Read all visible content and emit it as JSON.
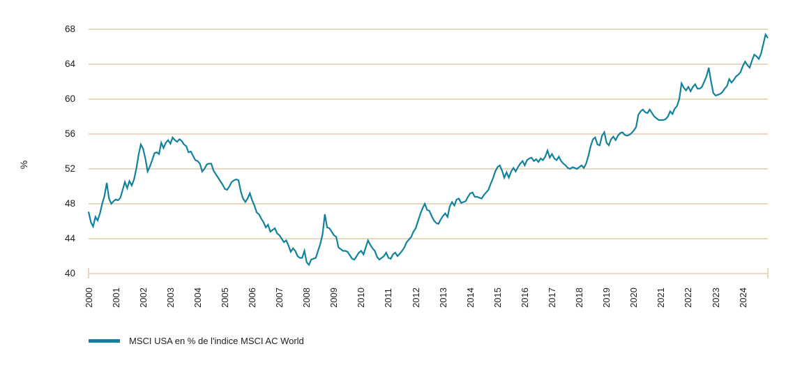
{
  "chart_data": {
    "type": "line",
    "title": "",
    "ylabel": "%",
    "ylim": [
      40,
      68
    ],
    "yticks": [
      40,
      44,
      48,
      52,
      56,
      60,
      64,
      68
    ],
    "xticks": [
      2000,
      2001,
      2002,
      2003,
      2004,
      2005,
      2006,
      2007,
      2008,
      2009,
      2010,
      2011,
      2012,
      2013,
      2014,
      2015,
      2016,
      2017,
      2018,
      2019,
      2020,
      2021,
      2022,
      2023,
      2024
    ],
    "x_frequency": "monthly",
    "x_start": "2000-01",
    "x_end": "2024-12",
    "grid": "horizontal",
    "legend_position": "bottom-left",
    "series": [
      {
        "name": "MSCI USA en % de l'indice MSCI AC World",
        "color": "#12829c",
        "values": [
          47.1,
          45.9,
          45.4,
          46.5,
          46.1,
          46.9,
          48.0,
          48.9,
          50.4,
          48.6,
          48.0,
          48.3,
          48.5,
          48.4,
          48.7,
          49.6,
          50.5,
          49.8,
          50.6,
          50.1,
          50.8,
          52.0,
          53.6,
          54.8,
          54.3,
          53.2,
          51.7,
          52.3,
          53.0,
          53.8,
          53.9,
          53.7,
          55.0,
          54.4,
          55.0,
          55.3,
          54.9,
          55.6,
          55.3,
          55.1,
          55.4,
          55.2,
          54.8,
          54.6,
          53.9,
          54.0,
          53.5,
          53.0,
          52.9,
          52.6,
          51.7,
          52.0,
          52.5,
          52.6,
          52.6,
          51.8,
          51.4,
          51.0,
          50.6,
          50.2,
          49.7,
          49.6,
          50.0,
          50.5,
          50.7,
          50.8,
          50.7,
          49.4,
          48.6,
          48.2,
          48.6,
          49.2,
          48.4,
          47.8,
          47.0,
          46.8,
          46.3,
          45.9,
          45.3,
          45.6,
          44.8,
          45.0,
          45.2,
          44.6,
          44.4,
          44.0,
          43.6,
          43.8,
          43.2,
          42.5,
          42.9,
          42.6,
          42.0,
          41.8,
          41.8,
          42.6,
          41.3,
          41.0,
          41.6,
          41.7,
          41.8,
          42.6,
          43.4,
          44.5,
          46.8,
          45.3,
          45.2,
          44.8,
          44.4,
          44.2,
          43.0,
          42.8,
          42.6,
          42.6,
          42.5,
          42.1,
          41.7,
          41.6,
          42.0,
          42.4,
          42.6,
          42.2,
          43.0,
          43.8,
          43.3,
          42.9,
          42.6,
          41.9,
          41.6,
          41.8,
          42.0,
          42.4,
          41.8,
          41.7,
          42.2,
          42.4,
          42.0,
          42.3,
          42.6,
          43.0,
          43.6,
          43.9,
          44.2,
          44.8,
          45.2,
          46.0,
          46.8,
          47.5,
          48.0,
          47.3,
          47.2,
          46.6,
          46.1,
          45.8,
          45.7,
          46.2,
          46.6,
          46.9,
          46.5,
          47.7,
          48.2,
          47.8,
          48.5,
          48.6,
          48.1,
          48.2,
          48.3,
          48.8,
          49.2,
          49.3,
          48.8,
          48.8,
          48.7,
          48.6,
          49.0,
          49.3,
          49.6,
          50.3,
          50.9,
          51.7,
          52.2,
          52.4,
          51.8,
          51.0,
          51.6,
          51.0,
          51.7,
          52.1,
          51.7,
          52.2,
          52.6,
          52.9,
          52.4,
          53.0,
          53.2,
          53.3,
          52.9,
          53.1,
          52.8,
          53.2,
          53.0,
          53.4,
          54.1,
          53.3,
          53.7,
          53.2,
          53.0,
          53.4,
          52.9,
          52.6,
          52.4,
          52.1,
          52.0,
          52.2,
          52.1,
          52.0,
          52.2,
          52.4,
          52.1,
          52.6,
          53.5,
          54.6,
          55.4,
          55.6,
          54.8,
          54.7,
          55.8,
          56.2,
          55.0,
          54.7,
          55.4,
          55.7,
          55.3,
          55.8,
          56.1,
          56.2,
          55.9,
          55.8,
          55.9,
          56.1,
          56.4,
          56.8,
          58.2,
          58.6,
          58.8,
          58.5,
          58.4,
          58.8,
          58.4,
          58.0,
          57.8,
          57.6,
          57.6,
          57.6,
          57.7,
          58.0,
          58.6,
          58.3,
          58.9,
          59.2,
          60.0,
          61.8,
          61.3,
          61.0,
          61.4,
          60.9,
          61.4,
          61.7,
          61.2,
          61.2,
          61.4,
          62.0,
          62.6,
          63.6,
          62.0,
          60.7,
          60.4,
          60.5,
          60.6,
          60.8,
          61.2,
          61.5,
          62.3,
          61.9,
          62.2,
          62.6,
          62.8,
          63.1,
          63.8,
          64.3,
          63.9,
          63.6,
          64.4,
          65.1,
          64.9,
          64.6,
          65.2,
          66.3,
          67.4,
          67.0
        ]
      }
    ]
  },
  "legend": {
    "label": "MSCI USA en % de l'indice MSCI AC World"
  },
  "colors": {
    "line": "#12829c",
    "gridline": "#e8d8be",
    "axis": "#e8d8be",
    "text": "#1d1d1b",
    "background": "#ffffff"
  }
}
